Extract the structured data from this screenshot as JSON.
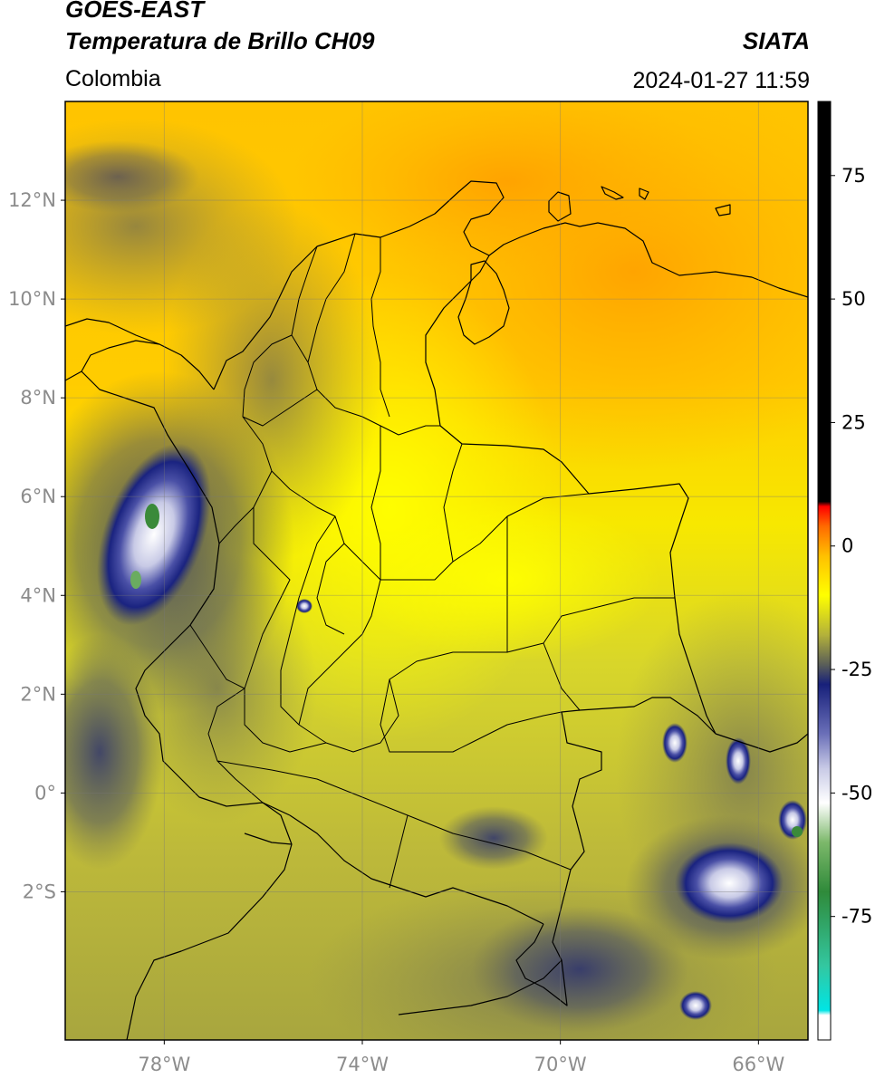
{
  "header": {
    "title": "GOES-EAST",
    "subtitle": "Temperatura de Brillo CH09",
    "region": "Colombia",
    "brand": "SIATA",
    "datetime": "2024-01-27 11:59"
  },
  "map": {
    "lon_range": [
      -80,
      -65
    ],
    "lat_range": [
      -5,
      14
    ],
    "lat_ticks": [
      {
        "lat": 12,
        "label": "12°N"
      },
      {
        "lat": 10,
        "label": "10°N"
      },
      {
        "lat": 8,
        "label": "8°N"
      },
      {
        "lat": 6,
        "label": "6°N"
      },
      {
        "lat": 4,
        "label": "4°N"
      },
      {
        "lat": 2,
        "label": "2°N"
      },
      {
        "lat": 0,
        "label": "0°"
      },
      {
        "lat": -2,
        "label": "2°S"
      }
    ],
    "lon_ticks": [
      {
        "lon": -78,
        "label": "78°W"
      },
      {
        "lon": -74,
        "label": "74°W"
      },
      {
        "lon": -70,
        "label": "70°W"
      },
      {
        "lon": -66,
        "label": "66°W"
      }
    ]
  },
  "colorbar": {
    "range": [
      -100,
      90
    ],
    "ticks": [
      {
        "value": 75,
        "label": "75"
      },
      {
        "value": 50,
        "label": "50"
      },
      {
        "value": 25,
        "label": "25"
      },
      {
        "value": 0,
        "label": "0"
      },
      {
        "value": -25,
        "label": "-25"
      },
      {
        "value": -50,
        "label": "-50"
      },
      {
        "value": -75,
        "label": "-75"
      }
    ],
    "stops": [
      {
        "value": -100,
        "color": "#ffffff"
      },
      {
        "value": -95,
        "color": "#ffffff"
      },
      {
        "value": -94,
        "color": "#00e5e5"
      },
      {
        "value": -85,
        "color": "#33c7a0"
      },
      {
        "value": -70,
        "color": "#2f8a3a"
      },
      {
        "value": -60,
        "color": "#7cb86a"
      },
      {
        "value": -52,
        "color": "#ffffff"
      },
      {
        "value": -45,
        "color": "#c8cae6"
      },
      {
        "value": -38,
        "color": "#6a6fb8"
      },
      {
        "value": -28,
        "color": "#17207a"
      },
      {
        "value": -24,
        "color": "#5a5e58"
      },
      {
        "value": -18,
        "color": "#b3b13a"
      },
      {
        "value": -10,
        "color": "#ffff00"
      },
      {
        "value": -2,
        "color": "#ffc000"
      },
      {
        "value": 4,
        "color": "#ff6a00"
      },
      {
        "value": 8,
        "color": "#ff0000"
      },
      {
        "value": 9,
        "color": "#000000"
      },
      {
        "value": 90,
        "color": "#000000"
      }
    ]
  }
}
